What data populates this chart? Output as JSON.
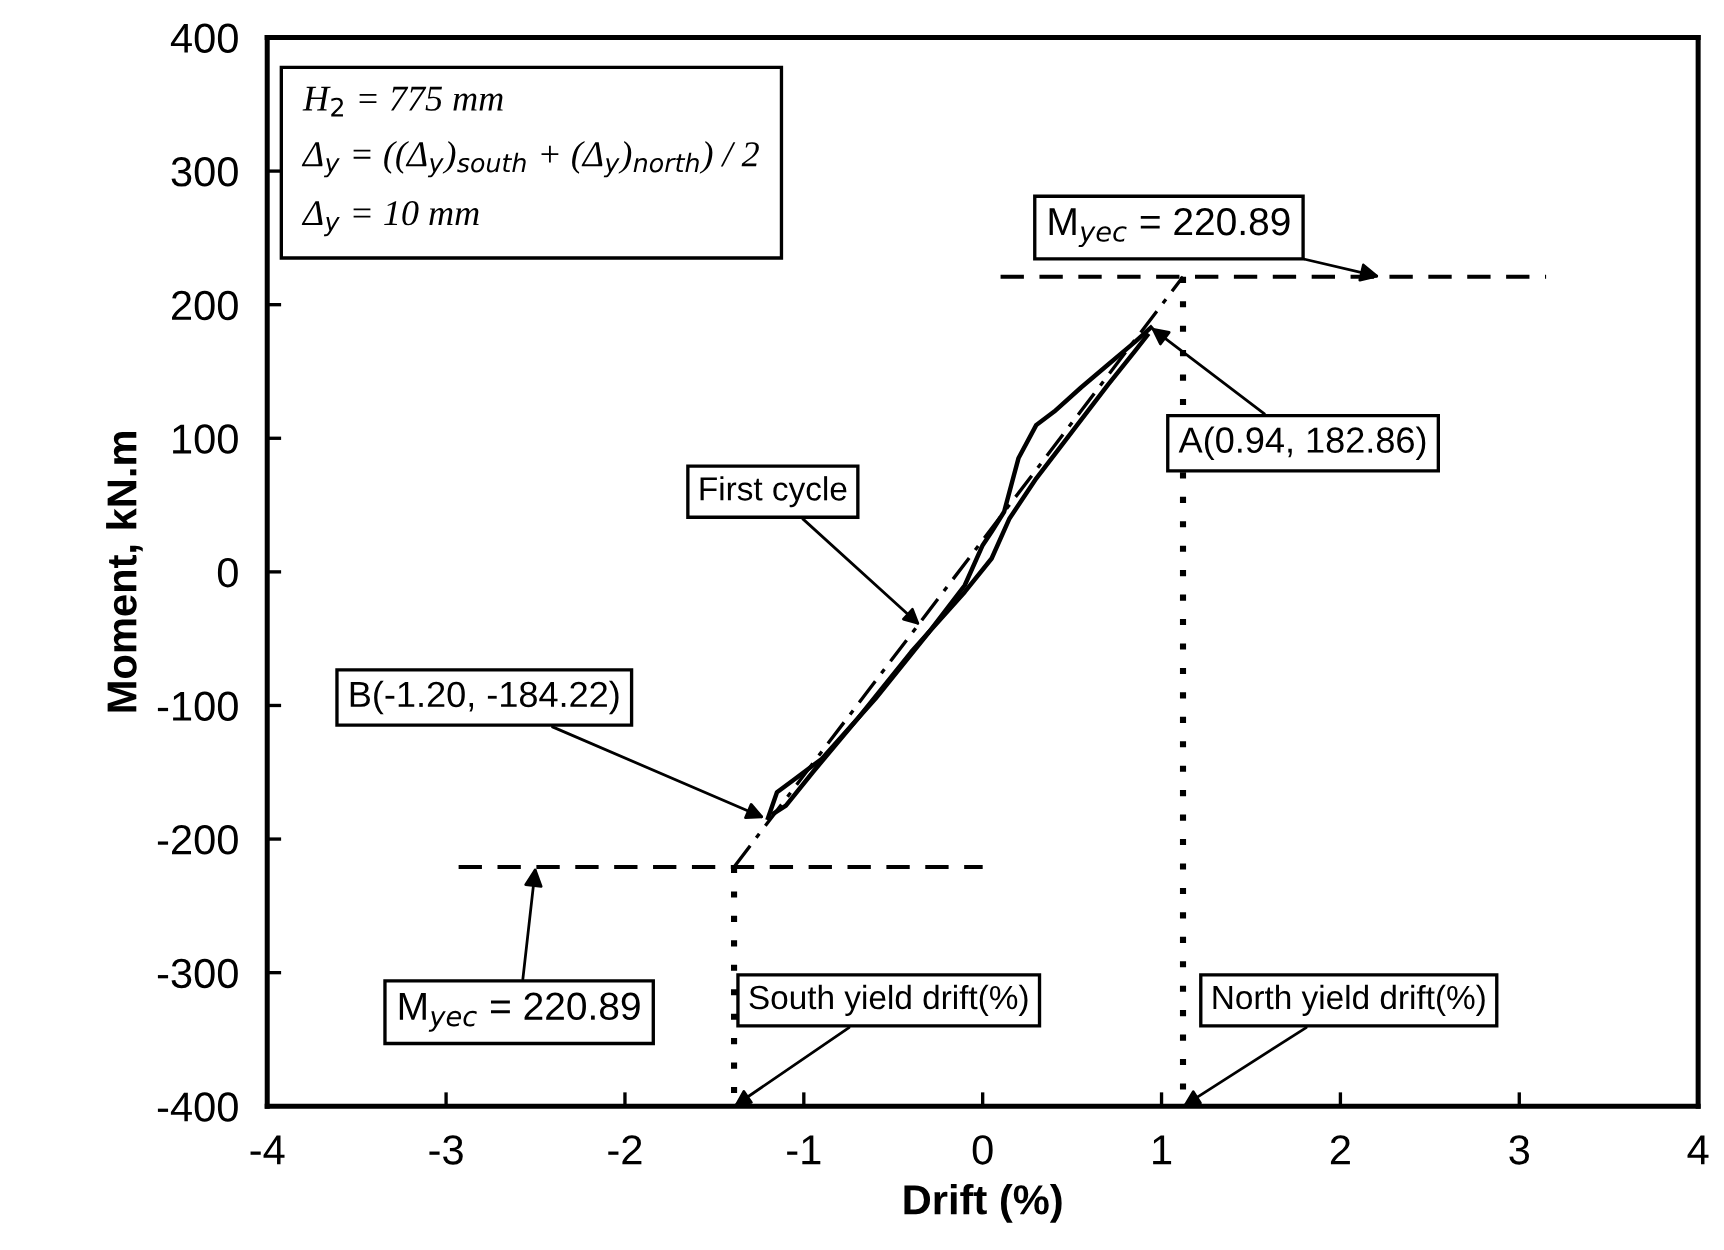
{
  "chart_data": {
    "type": "line",
    "xlabel": "Drift (%)",
    "ylabel": "Moment, kN.m",
    "xlim": [
      -4,
      4
    ],
    "xticks": [
      -4,
      -3,
      -2,
      -1,
      0,
      1,
      2,
      3,
      4
    ],
    "ylim": [
      -400,
      400
    ],
    "yticks": [
      -400,
      -300,
      -200,
      -100,
      0,
      100,
      200,
      300,
      400
    ],
    "grid": false,
    "legend": false,
    "marker": "none",
    "series": [
      {
        "color": "#000000",
        "line_style": "solid",
        "x": [
          -1.2,
          -1.15,
          -1.05,
          -0.9,
          -0.6,
          -0.3,
          -0.1,
          0.0,
          0.05,
          0.12,
          0.2,
          0.3,
          0.4,
          0.55,
          0.7,
          0.85,
          0.94
        ],
        "values": [
          -184.22,
          -165,
          -155,
          -140,
          -95,
          -45,
          -10,
          20,
          30,
          45,
          85,
          110,
          120,
          138,
          155,
          172,
          182.86
        ]
      },
      {
        "color": "#000000",
        "line_style": "solid",
        "x": [
          -1.17,
          -1.1,
          -0.95,
          -0.7,
          -0.4,
          -0.1,
          0.05,
          0.15,
          0.3,
          0.5,
          0.7,
          0.85,
          0.92
        ],
        "values": [
          -181,
          -175,
          -150,
          -110,
          -60,
          -15,
          10,
          40,
          70,
          105,
          140,
          165,
          177
        ]
      },
      {
        "color": "#000000",
        "line_style": "dashdot",
        "x": [
          -1.39,
          1.12
        ],
        "values": [
          -220.89,
          220.89
        ]
      },
      {
        "color": "#000000",
        "line_style": "dashed",
        "x": [
          0.1,
          3.15
        ],
        "values": [
          220.89,
          220.89
        ]
      },
      {
        "color": "#000000",
        "line_style": "dashed",
        "x": [
          -2.93,
          0.0
        ],
        "values": [
          -220.89,
          -220.89
        ]
      },
      {
        "color": "#000000",
        "line_style": "dotted",
        "x": [
          1.12,
          1.12
        ],
        "values": [
          220.89,
          -400
        ]
      },
      {
        "color": "#000000",
        "line_style": "dotted",
        "x": [
          -1.39,
          -1.39
        ],
        "values": [
          -220.89,
          -400
        ]
      }
    ],
    "annotations": [
      "H$_{2}$ = 775 mm\nΔ$_{y}$ = ((Δ$_{y}$)$_{south}$ + (Δ$_{y}$)$_{north}$) / 2\nΔ$_{y}$ = 10 mm",
      {
        "text": "M$_{yec}$ = 220.89",
        "x": 2.22,
        "y": 220.89
      },
      {
        "text": "A(0.94, 182.86)",
        "x": 0.94,
        "y": 182.86
      },
      {
        "text": "First cycle",
        "x": -0.35,
        "y": -40
      },
      {
        "text": "B(-1.20, -184.22)",
        "x": -1.22,
        "y": -184.22
      },
      {
        "text": "M$_{yec}$ = 220.89",
        "x": -2.5,
        "y": -220.89
      },
      {
        "text": "South yield drift(%)",
        "x": -1.39,
        "y": -400
      },
      {
        "text": "North yield drift(%)",
        "x": 1.12,
        "y": -400
      }
    ]
  }
}
